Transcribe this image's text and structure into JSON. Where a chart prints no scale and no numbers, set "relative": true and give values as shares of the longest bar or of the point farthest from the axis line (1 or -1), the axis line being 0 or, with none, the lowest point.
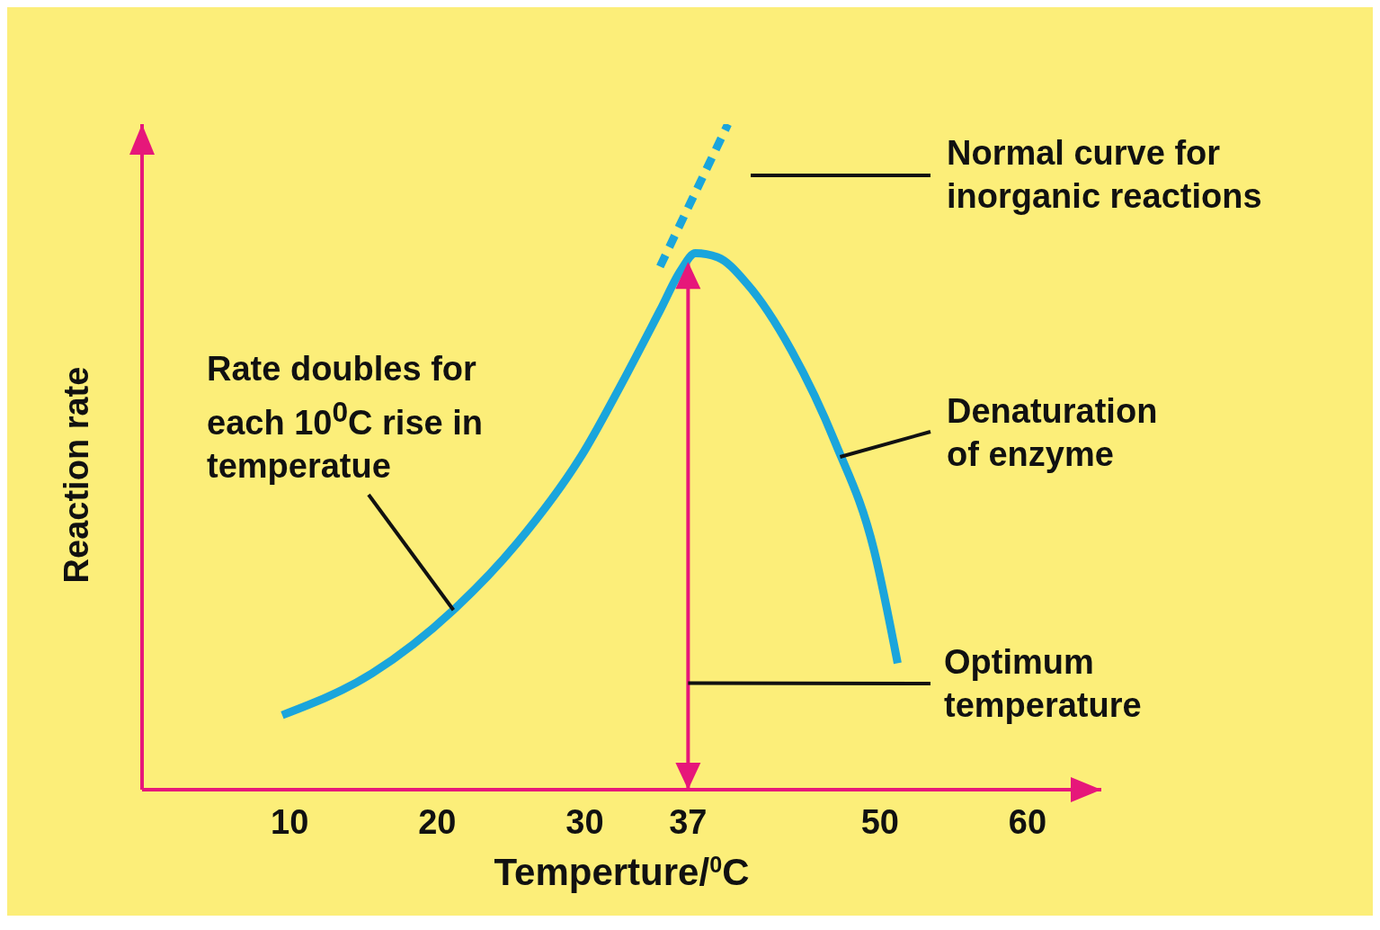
{
  "chart_data": {
    "type": "line",
    "relative": true,
    "xlabel": "Temperture/$^{0}$C",
    "ylabel": "Reaction rate",
    "xlim": [
      0,
      65
    ],
    "xticks": [
      10,
      20,
      30,
      37,
      50,
      60
    ],
    "marker": "none",
    "legend": false,
    "grid": false,
    "series": [
      {
        "color": "#1aa5dc",
        "line_style": "solid",
        "x": [
          9.5,
          15.6,
          21.1,
          25.4,
          30,
          32.5,
          35.1,
          36.5,
          37.5,
          39,
          41,
          44,
          47,
          49.6,
          51.2
        ],
        "values": [
          0.112,
          0.175,
          0.27,
          0.37,
          0.51,
          0.61,
          0.72,
          0.78,
          0.806,
          0.8,
          0.76,
          0.66,
          0.52,
          0.36,
          0.19
        ]
      },
      {
        "color": "#1aa5dc",
        "line_style": "dashed",
        "x": [
          35.1,
          39.7
        ],
        "values": [
          0.786,
          1.0
        ]
      }
    ],
    "ref_lines": [
      {
        "axis": "x",
        "value": 37,
        "color": "#e6177a"
      }
    ],
    "annotations": [
      "Normal curve for inorganic reactions",
      {
        "text": "Rate doubles for each 10$^{0}$C rise in temperatue",
        "x": 21.1,
        "y": 0.27
      },
      {
        "text": "Denaturation of enzyme",
        "x": 47.3,
        "y": 0.5
      },
      {
        "text": "Optimum temperature",
        "x": 37,
        "y": 0.16
      }
    ]
  }
}
